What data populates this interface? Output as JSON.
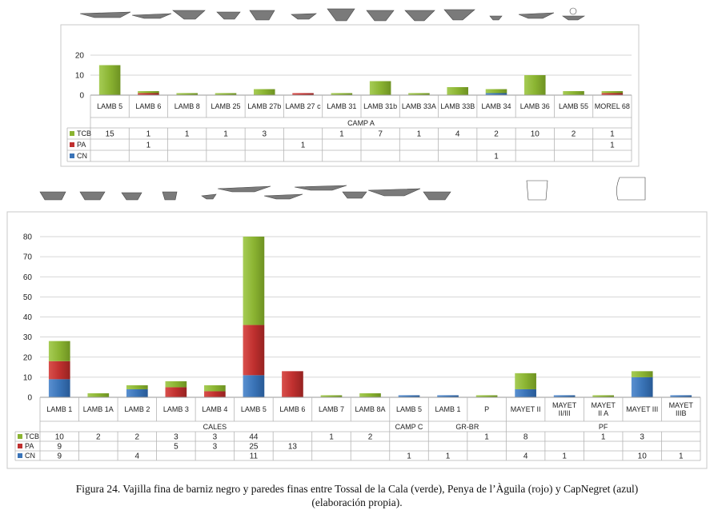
{
  "caption": {
    "line1": "Figura 24. Vajilla fina de barniz negro y paredes finas entre Tossal de la Cala (verde), Penya de l’Àguila (rojo) y CapNegret (azul)",
    "line2": "(elaboración propia)."
  },
  "colors": {
    "TCB": "#8bb432",
    "PA": "#c0302f",
    "CN": "#3a74b8"
  },
  "chart_data": [
    {
      "type": "bar",
      "stacked": true,
      "title": "",
      "ylim": [
        0,
        20
      ],
      "yticks": [
        0,
        10,
        20
      ],
      "grid": true,
      "categories": [
        "LAMB 5",
        "LAMB 6",
        "LAMB 8",
        "LAMB 25",
        "LAMB 27b",
        "LAMB 27 c",
        "LAMB 31",
        "LAMB 31b",
        "LAMB 33A",
        "LAMB 33B",
        "LAMB 34",
        "LAMB 36",
        "LAMB 55",
        "MOREL 68"
      ],
      "groups": [
        {
          "label": "CAMP A",
          "start": 0,
          "end": 13
        }
      ],
      "series": [
        {
          "name": "TCB",
          "values": [
            15,
            1,
            1,
            1,
            3,
            null,
            1,
            7,
            1,
            4,
            2,
            10,
            2,
            1
          ]
        },
        {
          "name": "PA",
          "values": [
            null,
            1,
            null,
            null,
            null,
            1,
            null,
            null,
            null,
            null,
            null,
            null,
            null,
            1
          ]
        },
        {
          "name": "CN",
          "values": [
            null,
            null,
            null,
            null,
            null,
            null,
            null,
            null,
            null,
            null,
            1,
            null,
            null,
            null
          ]
        }
      ],
      "legend": "table-left"
    },
    {
      "type": "bar",
      "stacked": true,
      "title": "",
      "ylim": [
        0,
        80
      ],
      "yticks": [
        0,
        10,
        20,
        30,
        40,
        50,
        60,
        70,
        80
      ],
      "grid": true,
      "categories": [
        "LAMB 1",
        "LAMB 1A",
        "LAMB 2",
        "LAMB 3",
        "LAMB 4",
        "LAMB 5",
        "LAMB 6",
        "LAMB 7",
        "LAMB 8A",
        "LAMB 5",
        "LAMB 1",
        "P",
        "MAYET II",
        "MAYET II/III",
        "MAYET II A",
        "MAYET III",
        "MAYET IIIB"
      ],
      "groups": [
        {
          "label": "CALES",
          "start": 0,
          "end": 8
        },
        {
          "label": "CAMP C",
          "start": 9,
          "end": 9
        },
        {
          "label": "GR-BR",
          "start": 10,
          "end": 11
        },
        {
          "label": "PF",
          "start": 12,
          "end": 16
        }
      ],
      "series": [
        {
          "name": "TCB",
          "values": [
            10,
            2,
            2,
            3,
            3,
            44,
            null,
            1,
            2,
            null,
            null,
            1,
            8,
            null,
            1,
            3,
            null
          ]
        },
        {
          "name": "PA",
          "values": [
            9,
            null,
            null,
            5,
            3,
            25,
            13,
            null,
            null,
            null,
            null,
            null,
            null,
            null,
            null,
            null,
            null
          ]
        },
        {
          "name": "CN",
          "values": [
            9,
            null,
            4,
            null,
            null,
            11,
            null,
            null,
            null,
            1,
            1,
            null,
            4,
            1,
            null,
            10,
            1
          ]
        }
      ],
      "legend": "table-left"
    }
  ]
}
